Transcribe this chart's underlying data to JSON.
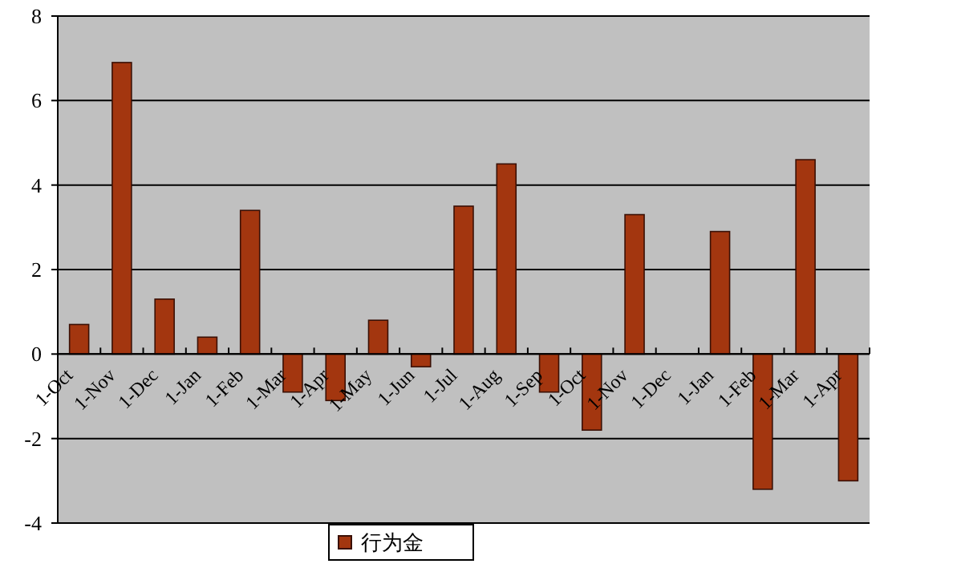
{
  "chart_data": {
    "type": "bar",
    "categories": [
      "1-Oct",
      "1-Nov",
      "1-Dec",
      "1-Jan",
      "1-Feb",
      "1-Mar",
      "1-Apr",
      "1-May",
      "1-Jun",
      "1-Jul",
      "1-Aug",
      "1-Sep",
      "1-Oct",
      "1-Nov",
      "1-Dec",
      "1-Jan",
      "1-Feb",
      "1-Mar",
      "1-Apr"
    ],
    "series": [
      {
        "name": "行为金",
        "color": "#a3360f",
        "values": [
          0.7,
          6.9,
          1.3,
          0.4,
          3.4,
          -0.9,
          -1.1,
          0.8,
          -0.3,
          3.5,
          4.5,
          -0.9,
          -1.8,
          3.3,
          null,
          2.9,
          -3.2,
          4.6,
          -3.0
        ]
      }
    ],
    "ylim": [
      -4,
      8
    ],
    "yticks": [
      -4,
      -2,
      0,
      2,
      4,
      6,
      8
    ],
    "grid": "y",
    "legend": "bottom"
  }
}
